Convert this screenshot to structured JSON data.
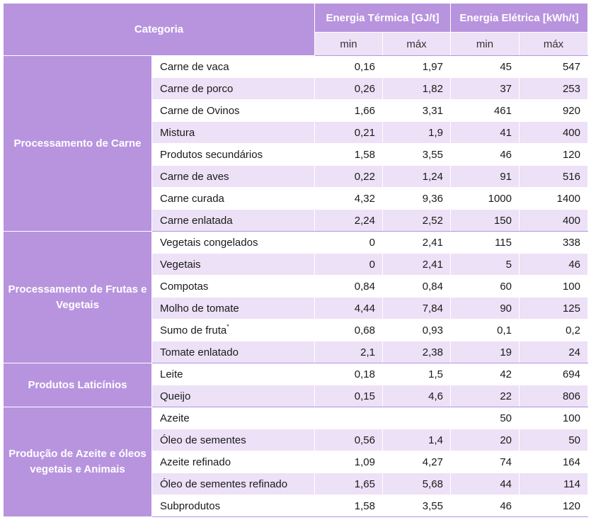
{
  "header": {
    "categoria": "Categoria",
    "termica": "Energia Térmica [GJ/t]",
    "eletrica": "Energia Elétrica [kWh/t]",
    "min": "min",
    "max": "máx"
  },
  "groups": [
    {
      "name": "Processamento de Carne",
      "rows": [
        {
          "item": "Carne de vaca",
          "t_min": "0,16",
          "t_max": "1,97",
          "e_min": "45",
          "e_max": "547"
        },
        {
          "item": "Carne de porco",
          "t_min": "0,26",
          "t_max": "1,82",
          "e_min": "37",
          "e_max": "253"
        },
        {
          "item": "Carne de Ovinos",
          "t_min": "1,66",
          "t_max": "3,31",
          "e_min": "461",
          "e_max": "920"
        },
        {
          "item": "Mistura",
          "t_min": "0,21",
          "t_max": "1,9",
          "e_min": "41",
          "e_max": "400"
        },
        {
          "item": "Produtos secundários",
          "t_min": "1,58",
          "t_max": "3,55",
          "e_min": "46",
          "e_max": "120"
        },
        {
          "item": "Carne de aves",
          "t_min": "0,22",
          "t_max": "1,24",
          "e_min": "91",
          "e_max": "516"
        },
        {
          "item": "Carne curada",
          "t_min": "4,32",
          "t_max": "9,36",
          "e_min": "1000",
          "e_max": "1400"
        },
        {
          "item": "Carne enlatada",
          "t_min": "2,24",
          "t_max": "2,52",
          "e_min": "150",
          "e_max": "400"
        }
      ]
    },
    {
      "name": "Processamento de Frutas e Vegetais",
      "rows": [
        {
          "item": "Vegetais congelados",
          "t_min": "0",
          "t_max": "2,41",
          "e_min": "115",
          "e_max": "338"
        },
        {
          "item": "Vegetais",
          "t_min": "0",
          "t_max": "2,41",
          "e_min": "5",
          "e_max": "46"
        },
        {
          "item": "Compotas",
          "t_min": "0,84",
          "t_max": "0,84",
          "e_min": "60",
          "e_max": "100"
        },
        {
          "item": "Molho de tomate",
          "t_min": "4,44",
          "t_max": "7,84",
          "e_min": "90",
          "e_max": "125"
        },
        {
          "item": "Sumo de fruta",
          "sup": "*",
          "t_min": "0,68",
          "t_max": "0,93",
          "e_min": "0,1",
          "e_max": "0,2"
        },
        {
          "item": "Tomate enlatado",
          "t_min": "2,1",
          "t_max": "2,38",
          "e_min": "19",
          "e_max": "24"
        }
      ]
    },
    {
      "name": "Produtos Laticínios",
      "rows": [
        {
          "item": "Leite",
          "t_min": "0,18",
          "t_max": "1,5",
          "e_min": "42",
          "e_max": "694"
        },
        {
          "item": "Queijo",
          "t_min": "0,15",
          "t_max": "4,6",
          "e_min": "22",
          "e_max": "806"
        }
      ]
    },
    {
      "name": "Produção de Azeite e óleos vegetais e Animais",
      "rows": [
        {
          "item": "Azeite",
          "t_min": "",
          "t_max": "",
          "e_min": "50",
          "e_max": "100"
        },
        {
          "item": "Óleo de sementes",
          "t_min": "0,56",
          "t_max": "1,4",
          "e_min": "20",
          "e_max": "50"
        },
        {
          "item": "Azeite refinado",
          "t_min": "1,09",
          "t_max": "4,27",
          "e_min": "74",
          "e_max": "164"
        },
        {
          "item": "Óleo de sementes refinado",
          "t_min": "1,65",
          "t_max": "5,68",
          "e_min": "44",
          "e_max": "114"
        },
        {
          "item": "Subprodutos",
          "t_min": "1,58",
          "t_max": "3,55",
          "e_min": "46",
          "e_max": "120"
        }
      ]
    }
  ]
}
